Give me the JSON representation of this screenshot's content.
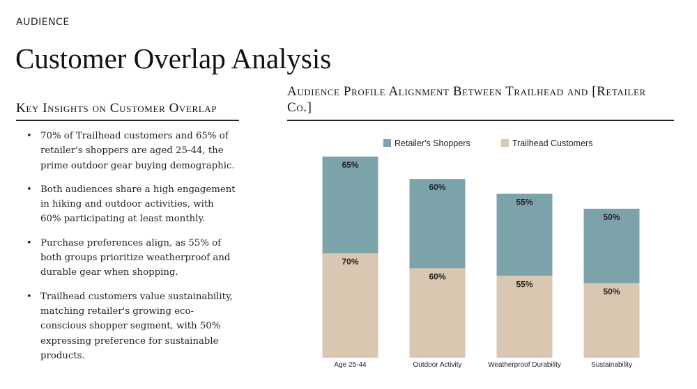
{
  "header": {
    "eyebrow": "AUDIENCE",
    "title": "Customer Overlap Analysis"
  },
  "left_panel": {
    "heading": "Key Insights on Customer Overlap",
    "insights": [
      "70% of Trailhead customers and 65% of retailer's shoppers are aged 25-44, the prime outdoor gear buying demographic.",
      "Both audiences share a high engagement in hiking and outdoor activities, with 60% participating at least monthly.",
      "Purchase preferences align, as 55% of both groups prioritize weatherproof and durable gear when shopping.",
      "Trailhead customers value sustainability, matching retailer's growing eco-conscious shopper segment, with 50% expressing preference for sustainable products."
    ]
  },
  "right_panel": {
    "heading": "Audience Profile Alignment Between Trailhead and [Retailer Co.]"
  },
  "chart_data": {
    "type": "bar",
    "stacked": true,
    "categories": [
      "Age 25-44",
      "Outdoor Activity",
      "Weatherproof Durability",
      "Sustainability"
    ],
    "series": [
      {
        "name": "Trailhead Customers",
        "values": [
          70,
          60,
          55,
          50
        ],
        "color": "#d9c7b2"
      },
      {
        "name": "Retailer's Shoppers",
        "values": [
          65,
          60,
          55,
          50
        ],
        "color": "#7da3aa"
      }
    ],
    "legend_order": [
      "Retailer's Shoppers",
      "Trailhead Customers"
    ],
    "legend_position": "top",
    "ylim": [
      0,
      135
    ],
    "grid": false,
    "value_suffix": "%"
  }
}
